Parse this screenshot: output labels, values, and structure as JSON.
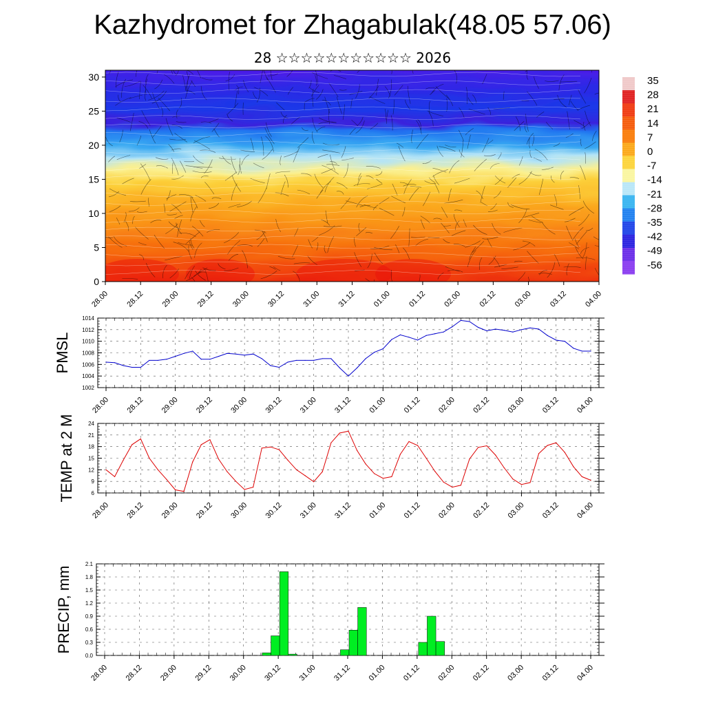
{
  "title": "Kazhydromet for Zhagabulak(48.05 57.06)",
  "subtitle": "28 ☆☆☆☆☆☆☆☆☆☆☆ 2026",
  "time_labels": [
    "28.00",
    "28.12",
    "29.00",
    "29.12",
    "30.00",
    "30.12",
    "31.00",
    "31.12",
    "01.00",
    "01.12",
    "02.00",
    "02.12",
    "03.00",
    "03.12",
    "04.00"
  ],
  "chart_data": [
    {
      "type": "heatmap",
      "title": "",
      "ylabel": "",
      "ylim": [
        0,
        31
      ],
      "yticks": [
        0,
        5,
        10,
        15,
        20,
        25,
        30
      ],
      "colorbar_labels": [
        "35",
        "28",
        "21",
        "14",
        "7",
        "0",
        "-7",
        "-14",
        "-21",
        "-28",
        "-35",
        "-42",
        "-49",
        "-56"
      ],
      "colorbar_colors": [
        "#f0c8c8",
        "#e02020",
        "#f03a10",
        "#f55a0a",
        "#f97d0a",
        "#fba818",
        "#fcd43a",
        "#faf6a0",
        "#b8e6f8",
        "#38b4f0",
        "#2080f0",
        "#1f44e8",
        "#2a22e0",
        "#6a2ce8",
        "#8a3cf0"
      ]
    },
    {
      "type": "line",
      "ylabel": "PMSL",
      "ylim": [
        1002,
        1014
      ],
      "yticks": [
        1002,
        1004,
        1006,
        1008,
        1010,
        1012,
        1014
      ],
      "color": "#0000cc",
      "x": [
        0,
        1,
        2,
        3,
        4,
        5,
        6,
        7,
        8,
        9,
        10,
        11,
        12,
        13,
        14,
        15,
        16,
        17,
        18,
        19,
        20,
        21,
        22,
        23,
        24,
        25,
        26,
        27,
        28,
        29,
        30,
        31,
        32,
        33,
        34,
        35,
        36,
        37,
        38,
        39,
        40,
        41,
        42,
        43,
        44,
        45,
        46,
        47,
        48,
        49,
        50,
        51,
        52,
        53,
        54,
        55,
        56
      ],
      "values": [
        1006.4,
        1006.3,
        1005.8,
        1005.5,
        1005.5,
        1006.7,
        1006.7,
        1006.9,
        1007.4,
        1007.9,
        1008.3,
        1006.9,
        1006.9,
        1007.4,
        1007.9,
        1007.8,
        1007.6,
        1007.8,
        1007.0,
        1005.8,
        1005.5,
        1006.4,
        1006.7,
        1006.7,
        1006.7,
        1007.0,
        1007.0,
        1005.4,
        1004.0,
        1005.4,
        1007.0,
        1008.1,
        1008.7,
        1010.3,
        1011.1,
        1010.7,
        1010.2,
        1011.0,
        1011.3,
        1011.6,
        1012.5,
        1013.6,
        1013.4,
        1012.4,
        1011.8,
        1012.1,
        1011.9,
        1011.6,
        1012.0,
        1012.3,
        1012.1,
        1011.0,
        1010.2,
        1010.0,
        1008.8,
        1008.3,
        1008.3
      ]
    },
    {
      "type": "line",
      "ylabel": "TEMP at 2 M",
      "ylim": [
        6,
        24
      ],
      "yticks": [
        6,
        9,
        12,
        15,
        18,
        21,
        24
      ],
      "color": "#dd0000",
      "x": [
        0,
        1,
        2,
        3,
        4,
        5,
        6,
        7,
        8,
        9,
        10,
        11,
        12,
        13,
        14,
        15,
        16,
        17,
        18,
        19,
        20,
        21,
        22,
        23,
        24,
        25,
        26,
        27,
        28,
        29,
        30,
        31,
        32,
        33,
        34,
        35,
        36,
        37,
        38,
        39,
        40,
        41,
        42,
        43,
        44,
        45,
        46,
        47,
        48,
        49,
        50,
        51,
        52,
        53,
        54,
        55,
        56
      ],
      "values": [
        12.0,
        10.2,
        14.5,
        18.5,
        20.0,
        15.0,
        12.0,
        9.5,
        6.8,
        6.4,
        14.0,
        18.5,
        19.8,
        14.8,
        11.5,
        9.0,
        6.9,
        7.5,
        17.6,
        17.9,
        17.2,
        14.5,
        12.0,
        10.5,
        8.9,
        11.5,
        19.0,
        21.5,
        22.0,
        17.0,
        13.5,
        11.0,
        9.8,
        10.2,
        16.0,
        19.3,
        18.3,
        15.0,
        11.6,
        8.8,
        7.5,
        8.0,
        14.8,
        17.8,
        18.2,
        15.8,
        12.5,
        9.6,
        8.2,
        8.7,
        16.2,
        18.3,
        19.0,
        16.5,
        12.8,
        10.2,
        9.3
      ]
    },
    {
      "type": "bar",
      "ylabel": "PRECIP, mm",
      "ylim": [
        0,
        2.1
      ],
      "yticks": [
        "0.0",
        "0.3",
        "0.6",
        "0.9",
        "1.2",
        "1.5",
        "1.8",
        "2.1"
      ],
      "color": "#00ee22",
      "x": [
        18,
        19,
        20,
        21,
        27,
        28,
        29,
        36,
        37,
        38
      ],
      "values": [
        0.06,
        0.45,
        1.92,
        0.03,
        0.13,
        0.58,
        1.1,
        0.3,
        0.9,
        0.32
      ]
    }
  ]
}
